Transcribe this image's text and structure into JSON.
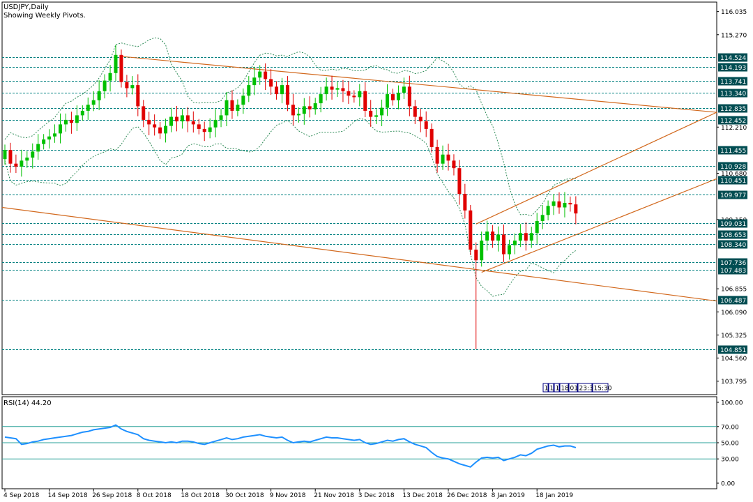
{
  "chart_data": {
    "type": "candlestick",
    "title": "USDJPY,Daily",
    "subtitle": "Showing Weekly Pivots.",
    "price_axis": {
      "ticks": [
        "116.035",
        "115.270",
        "112.210",
        "110.680",
        "109.150",
        "106.855",
        "106.090",
        "105.325",
        "104.560",
        "103.795"
      ],
      "range": [
        103.35,
        116.35
      ]
    },
    "pivots": [
      {
        "label": "114.524",
        "value": 114.524
      },
      {
        "label": "114.193",
        "value": 114.193
      },
      {
        "label": "113.741",
        "value": 113.741
      },
      {
        "label": "113.340",
        "value": 113.34
      },
      {
        "label": "112.835",
        "value": 112.835
      },
      {
        "label": "112.452",
        "value": 112.452
      },
      {
        "label": "111.455",
        "value": 111.455
      },
      {
        "label": "110.928",
        "value": 110.928
      },
      {
        "label": "110.451",
        "value": 110.451
      },
      {
        "label": "109.977",
        "value": 109.977
      },
      {
        "label": "109.031",
        "value": 109.031
      },
      {
        "label": "108.653",
        "value": 108.653
      },
      {
        "label": "108.340",
        "value": 108.34
      },
      {
        "label": "107.736",
        "value": 107.736
      },
      {
        "label": "107.483",
        "value": 107.483
      },
      {
        "label": "106.487",
        "value": 106.487
      },
      {
        "label": "104.851",
        "value": 104.851
      }
    ],
    "dates": [
      "4 Sep 2018",
      "14 Sep 2018",
      "26 Sep 2018",
      "8 Oct 2018",
      "18 Oct 2018",
      "30 Oct 2018",
      "9 Nov 2018",
      "21 Nov 2018",
      "3 Dec 2018",
      "13 Dec 2018",
      "26 Dec 2018",
      "8 Jan 2019",
      "18 Jan 2019"
    ],
    "date_tick_index": [
      0,
      8,
      16,
      24,
      32,
      40,
      48,
      56,
      64,
      72,
      80,
      88,
      96
    ],
    "close": [
      111.45,
      111.0,
      110.9,
      111.1,
      111.2,
      111.4,
      111.65,
      111.8,
      111.9,
      112.0,
      112.3,
      112.45,
      112.35,
      112.6,
      112.75,
      112.95,
      113.1,
      113.4,
      113.75,
      114.0,
      114.6,
      113.7,
      113.5,
      113.6,
      112.9,
      112.45,
      112.3,
      112.2,
      112.0,
      112.25,
      112.55,
      112.4,
      112.6,
      112.4,
      112.3,
      112.15,
      112.05,
      112.2,
      112.45,
      112.6,
      113.1,
      112.75,
      112.95,
      113.25,
      113.6,
      113.85,
      114.05,
      113.8,
      113.55,
      113.3,
      113.6,
      112.95,
      112.6,
      112.65,
      112.9,
      112.8,
      113.0,
      113.3,
      113.55,
      113.45,
      113.5,
      113.4,
      113.25,
      113.2,
      113.4,
      112.75,
      112.55,
      112.6,
      112.85,
      113.3,
      113.1,
      113.35,
      113.55,
      112.9,
      112.55,
      112.4,
      112.15,
      111.55,
      111.0,
      111.3,
      111.1,
      110.85,
      110.0,
      109.45,
      108.15,
      107.8,
      108.45,
      108.75,
      108.45,
      108.65,
      108.0,
      108.3,
      108.45,
      108.7,
      108.45,
      108.7,
      109.1,
      109.3,
      109.6,
      109.75,
      109.55,
      109.7,
      109.65,
      109.35
    ],
    "indicator": {
      "label": "RSI(14) 44.20",
      "ticks": [
        "100.00",
        "70.00",
        "50.00",
        "30.00",
        "0.00"
      ],
      "levels": [
        70,
        50,
        30
      ],
      "values": [
        57,
        56,
        55,
        48,
        49,
        51,
        52,
        54,
        55,
        56,
        57,
        58,
        59,
        61,
        63,
        64,
        66,
        67,
        68,
        69,
        72,
        67,
        64,
        62,
        60,
        55,
        53,
        52,
        51,
        50,
        51,
        50,
        52,
        52,
        51,
        49,
        48,
        50,
        52,
        54,
        56,
        54,
        55,
        57,
        58,
        59,
        60,
        58,
        57,
        56,
        57,
        53,
        50,
        51,
        52,
        51,
        53,
        55,
        57,
        56,
        56,
        55,
        54,
        53,
        54,
        50,
        48,
        49,
        51,
        53,
        52,
        54,
        55,
        51,
        48,
        46,
        44,
        38,
        33,
        31,
        30,
        27,
        24,
        22,
        20,
        26,
        31,
        32,
        31,
        32,
        28,
        30,
        32,
        35,
        34,
        37,
        42,
        44,
        46,
        47,
        45,
        46,
        46,
        44
      ]
    },
    "gridlines": "pivot levels only (dashed)",
    "colors": {
      "up": "#00c000",
      "down": "#e00000",
      "pivot": "#008080",
      "trend": "#d2691e",
      "band": "#2e8b57",
      "rsi": "#1e90ff",
      "rsi_level": "#2aa198",
      "pivot_label_bg": "#004d52"
    }
  },
  "timebox": [
    "1",
    "1",
    "1",
    "18:",
    "01",
    "23:30",
    "15:30"
  ]
}
